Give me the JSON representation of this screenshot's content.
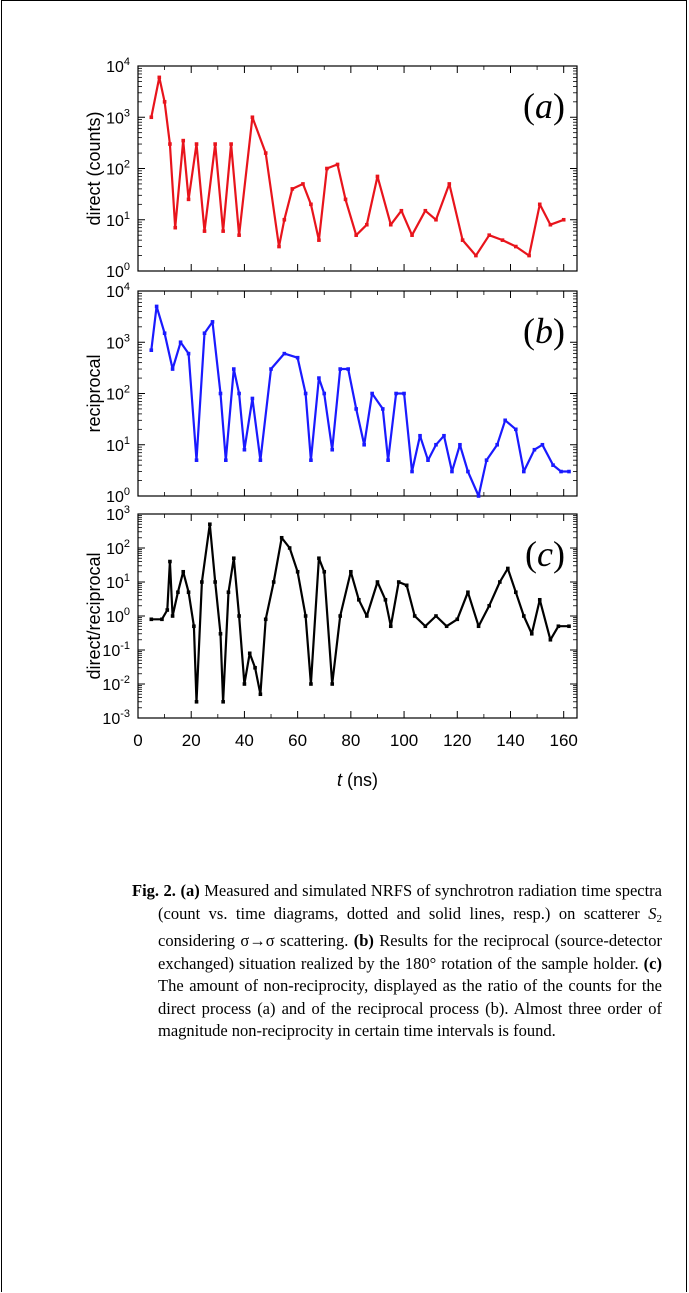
{
  "chart_data": [
    {
      "type": "scatter",
      "panel_label": "(a)",
      "ylabel": "direct (counts)",
      "yscale": "log",
      "ylim": [
        1,
        10000
      ],
      "xlim": [
        0,
        165
      ],
      "y_ticks": [
        "10^0",
        "10^1",
        "10^2",
        "10^3",
        "10^4"
      ],
      "color": "#e8141c",
      "series": [
        {
          "x": [
            5,
            8,
            10,
            12,
            14,
            17,
            19,
            22,
            25,
            29,
            32,
            35,
            38,
            43,
            48,
            53,
            55,
            58,
            62,
            65,
            68,
            71,
            75,
            78,
            82,
            86,
            90,
            95,
            99,
            103,
            108,
            112,
            117,
            122,
            127,
            132,
            137,
            142,
            147,
            151,
            155,
            160
          ],
          "y": [
            1000,
            6000,
            2000,
            300,
            7,
            350,
            25,
            300,
            6,
            300,
            6,
            300,
            5,
            1000,
            200,
            3,
            10,
            40,
            50,
            20,
            4,
            100,
            120,
            25,
            5,
            8,
            70,
            8,
            15,
            5,
            15,
            10,
            50,
            4,
            2,
            5,
            4,
            3,
            2,
            20,
            8,
            10
          ]
        }
      ]
    },
    {
      "type": "scatter",
      "panel_label": "(b)",
      "ylabel": "reciprocal",
      "yscale": "log",
      "ylim": [
        1,
        10000
      ],
      "xlim": [
        0,
        165
      ],
      "y_ticks": [
        "10^0",
        "10^1",
        "10^2",
        "10^3",
        "10^4"
      ],
      "color": "#1a1aff",
      "series": [
        {
          "x": [
            5,
            7,
            10,
            13,
            16,
            19,
            22,
            25,
            28,
            31,
            33,
            36,
            38,
            40,
            43,
            46,
            50,
            55,
            60,
            63,
            65,
            68,
            70,
            73,
            76,
            79,
            82,
            85,
            88,
            92,
            94,
            97,
            100,
            103,
            106,
            109,
            112,
            115,
            118,
            121,
            124,
            128,
            131,
            135,
            138,
            142,
            145,
            149,
            152,
            156,
            159,
            162
          ],
          "y": [
            700,
            5000,
            1500,
            300,
            1000,
            600,
            5,
            1500,
            2500,
            100,
            5,
            300,
            100,
            8,
            80,
            5,
            300,
            600,
            500,
            100,
            5,
            200,
            100,
            8,
            300,
            300,
            50,
            10,
            100,
            50,
            5,
            100,
            100,
            3,
            15,
            5,
            10,
            15,
            3,
            10,
            3,
            1,
            5,
            10,
            30,
            20,
            3,
            8,
            10,
            4,
            3,
            3
          ]
        }
      ]
    },
    {
      "type": "scatter",
      "panel_label": "(c)",
      "ylabel": "direct/reciprocal",
      "yscale": "log",
      "ylim": [
        0.001,
        1000
      ],
      "xlim": [
        0,
        165
      ],
      "y_ticks": [
        "10^-3",
        "10^-2",
        "10^-1",
        "10^0",
        "10^1",
        "10^2",
        "10^3"
      ],
      "x_ticks": [
        0,
        20,
        40,
        60,
        80,
        100,
        120,
        140,
        160
      ],
      "xlabel_italic": "t",
      "xlabel_rest": " (ns)",
      "color": "#000000",
      "series": [
        {
          "x": [
            5,
            9,
            11,
            12,
            13,
            15,
            17,
            19,
            21,
            22,
            24,
            27,
            29,
            31,
            32,
            34,
            36,
            38,
            40,
            42,
            44,
            46,
            48,
            51,
            54,
            57,
            60,
            63,
            65,
            68,
            70,
            73,
            76,
            80,
            83,
            86,
            90,
            93,
            95,
            98,
            101,
            104,
            108,
            112,
            116,
            120,
            124,
            128,
            132,
            136,
            139,
            142,
            145,
            148,
            151,
            155,
            158,
            162
          ],
          "y": [
            0.8,
            0.8,
            1.5,
            40,
            1,
            5,
            20,
            5,
            0.5,
            0.003,
            10,
            500,
            10,
            0.3,
            0.003,
            5,
            50,
            1,
            0.01,
            0.08,
            0.03,
            0.005,
            0.8,
            10,
            200,
            100,
            20,
            1,
            0.01,
            50,
            20,
            0.01,
            1,
            20,
            3,
            1,
            10,
            3,
            0.5,
            10,
            8,
            1,
            0.5,
            1,
            0.5,
            0.8,
            5,
            0.5,
            2,
            10,
            25,
            5,
            1,
            0.3,
            3,
            0.2,
            0.5,
            0.5
          ]
        }
      ]
    }
  ],
  "caption": {
    "label": "Fig. 2.",
    "a_label": "(a)",
    "a_text_1": " Measured and simulated NRFS of synchrotron radiation time spectra (count vs. time diagrams, dotted and solid lines, resp.) on scatterer ",
    "s_letter": "S",
    "s_sub": "2",
    "a_text_2": " considering σ→σ scattering. ",
    "b_label": "(b)",
    "b_text": " Results for the reciprocal (source-detector exchanged) situation realized by the 180° rotation of the sample holder. ",
    "c_label": "(c)",
    "c_text": " The amount of non-reciprocity, displayed as the ratio of the counts for the direct process (a) and of the reciprocal process (b). Almost three order of magnitude non-reciprocity in certain time intervals is found."
  }
}
